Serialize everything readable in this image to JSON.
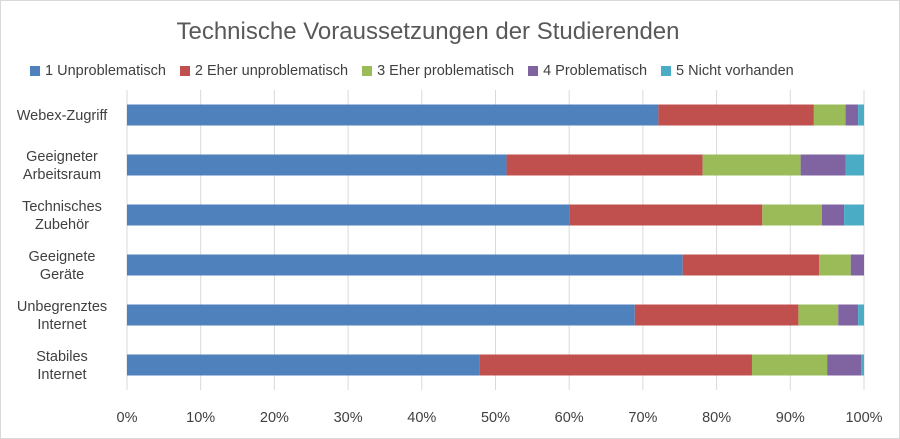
{
  "chart_data": {
    "type": "bar",
    "orientation": "horizontal",
    "stacked": "percent",
    "title": "Technische Voraussetzungen der Studierenden",
    "xlabel": "",
    "ylabel": "",
    "xlim": [
      0,
      100
    ],
    "x_ticks": [
      "0%",
      "10%",
      "20%",
      "30%",
      "40%",
      "50%",
      "60%",
      "70%",
      "80%",
      "90%",
      "100%"
    ],
    "grid": "vertical",
    "legend_position": "top",
    "categories": [
      [
        "Webex-Zugriff"
      ],
      [
        "Geeigneter",
        "Arbeitsraum"
      ],
      [
        "Technisches",
        "Zubehör"
      ],
      [
        "Geeignete",
        "Geräte"
      ],
      [
        "Unbegrenztes",
        "Internet"
      ],
      [
        "Stabiles",
        "Internet"
      ]
    ],
    "series": [
      {
        "name": "1 Unproblematisch",
        "color": "#4f81bd",
        "values": [
          72.1,
          51.5,
          60.1,
          75.4,
          68.9,
          47.8
        ]
      },
      {
        "name": "2 Eher unproblematisch",
        "color": "#c0504d",
        "values": [
          21.1,
          26.6,
          26.1,
          18.5,
          22.2,
          37.0
        ]
      },
      {
        "name": "3 Eher problematisch",
        "color": "#9bbb59",
        "values": [
          4.3,
          13.3,
          8.1,
          4.3,
          5.4,
          10.2
        ]
      },
      {
        "name": "4 Problematisch",
        "color": "#8064a2",
        "values": [
          1.7,
          6.1,
          3.0,
          1.8,
          2.7,
          4.6
        ]
      },
      {
        "name": "5 Nicht vorhanden",
        "color": "#4bacc6",
        "values": [
          0.8,
          2.5,
          2.7,
          0.0,
          0.8,
          0.4
        ]
      }
    ]
  }
}
